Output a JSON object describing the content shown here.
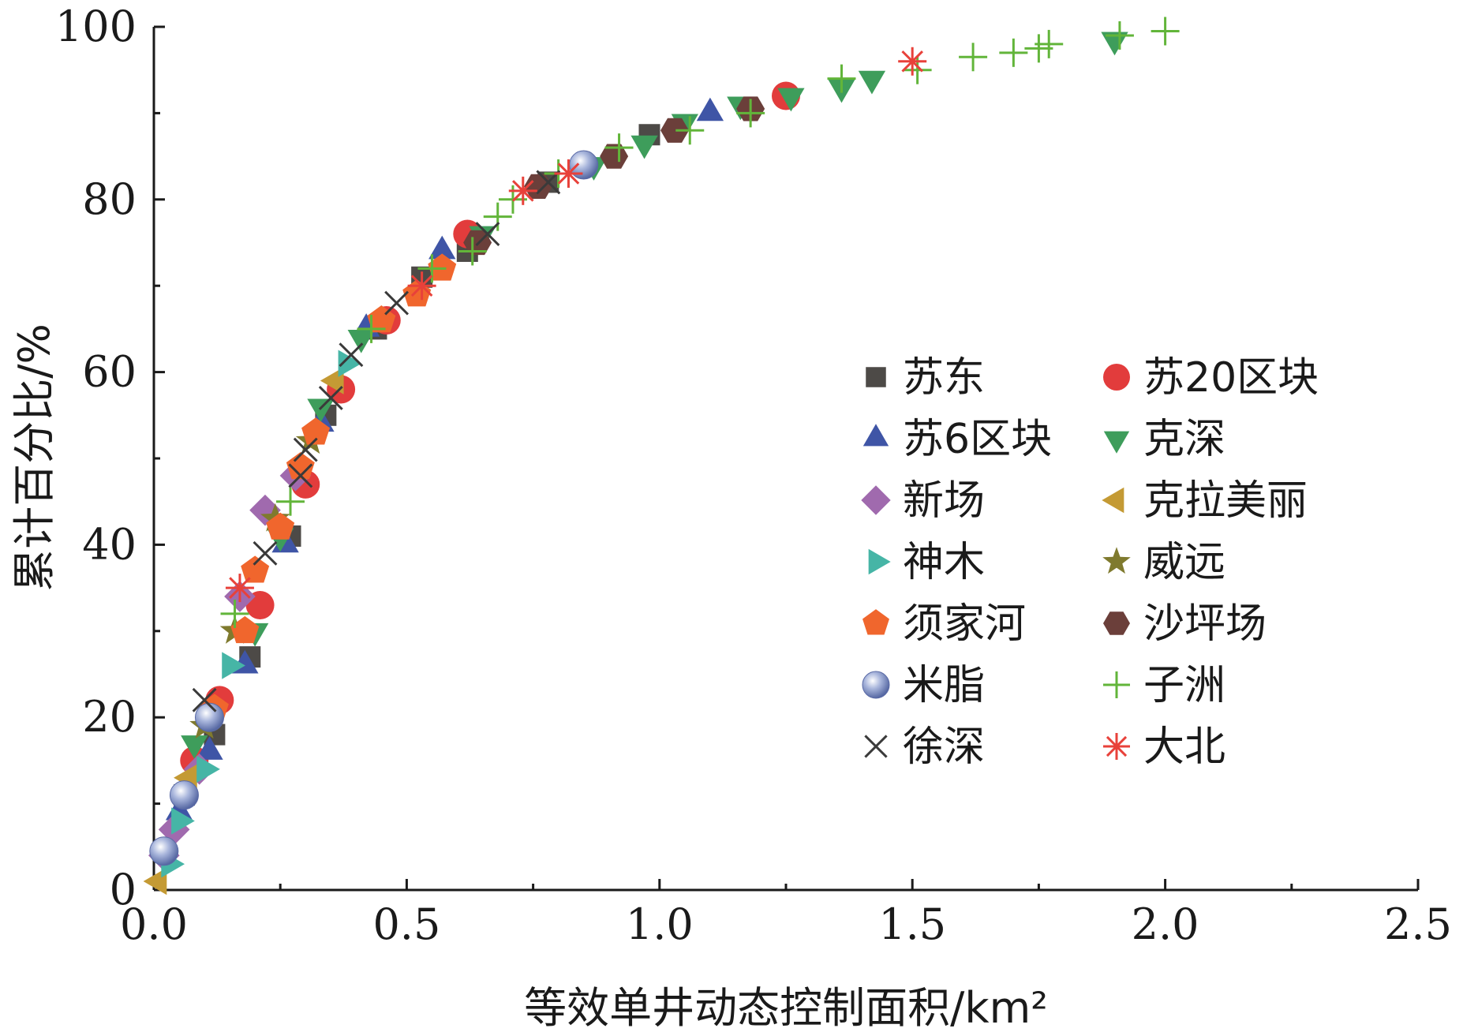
{
  "chart_data": {
    "type": "scatter",
    "title": "",
    "xlabel": "等效单井动态控制面积/km²",
    "ylabel": "累计百分比/%",
    "xlim": [
      0,
      2.5
    ],
    "ylim": [
      0,
      100
    ],
    "xticks": [
      "0.0",
      "0.5",
      "1.0",
      "1.5",
      "2.0",
      "2.5"
    ],
    "yticks": [
      "0",
      "20",
      "40",
      "60",
      "80",
      "100"
    ],
    "grid": false,
    "legend_position": "center-right",
    "series": [
      {
        "name": "苏东",
        "marker": "square",
        "color": "#4d4a47",
        "points": [
          [
            0.06,
            11
          ],
          [
            0.12,
            18
          ],
          [
            0.19,
            27
          ],
          [
            0.27,
            41
          ],
          [
            0.34,
            55
          ],
          [
            0.44,
            65
          ],
          [
            0.53,
            71
          ],
          [
            0.62,
            74
          ],
          [
            0.78,
            82
          ],
          [
            0.98,
            87.5
          ]
        ]
      },
      {
        "name": "苏20区块",
        "marker": "circle",
        "color": "#e23c3c",
        "points": [
          [
            0.08,
            15
          ],
          [
            0.13,
            22
          ],
          [
            0.21,
            33
          ],
          [
            0.3,
            47
          ],
          [
            0.37,
            58
          ],
          [
            0.46,
            66
          ],
          [
            0.62,
            76
          ],
          [
            1.25,
            92
          ]
        ]
      },
      {
        "name": "苏6区块",
        "marker": "triangle-up",
        "color": "#3f55a6",
        "points": [
          [
            0.05,
            9
          ],
          [
            0.11,
            16
          ],
          [
            0.18,
            26
          ],
          [
            0.26,
            40
          ],
          [
            0.33,
            54
          ],
          [
            0.42,
            65
          ],
          [
            0.57,
            74
          ],
          [
            1.1,
            90
          ]
        ]
      },
      {
        "name": "克深",
        "marker": "triangle-down",
        "color": "#3e9d5b",
        "points": [
          [
            0.08,
            17
          ],
          [
            0.2,
            30
          ],
          [
            0.25,
            41
          ],
          [
            0.33,
            56
          ],
          [
            0.41,
            64
          ],
          [
            0.65,
            76
          ],
          [
            0.87,
            84
          ],
          [
            0.97,
            86.5
          ],
          [
            1.05,
            89
          ],
          [
            1.16,
            91
          ],
          [
            1.26,
            92
          ],
          [
            1.36,
            93
          ],
          [
            1.42,
            94
          ],
          [
            1.9,
            98.5
          ]
        ]
      },
      {
        "name": "新场",
        "marker": "diamond",
        "color": "#a06aae",
        "points": [
          [
            0.02,
            4
          ],
          [
            0.04,
            7
          ],
          [
            0.09,
            14
          ],
          [
            0.17,
            34
          ],
          [
            0.22,
            44
          ],
          [
            0.28,
            48
          ]
        ]
      },
      {
        "name": "克拉美丽",
        "marker": "triangle-left",
        "color": "#c49a34",
        "points": [
          [
            0.01,
            1
          ],
          [
            0.07,
            13
          ],
          [
            0.36,
            59
          ]
        ]
      },
      {
        "name": "神木",
        "marker": "triangle-right",
        "color": "#46b5a6",
        "points": [
          [
            0.03,
            3
          ],
          [
            0.05,
            8
          ],
          [
            0.1,
            14
          ],
          [
            0.15,
            26
          ],
          [
            0.38,
            61
          ]
        ]
      },
      {
        "name": "威远",
        "marker": "star",
        "color": "#7f7a2e",
        "points": [
          [
            0.1,
            19
          ],
          [
            0.16,
            30
          ],
          [
            0.24,
            43
          ],
          [
            0.31,
            52
          ]
        ]
      },
      {
        "name": "须家河",
        "marker": "pentagon",
        "color": "#f0662d",
        "points": [
          [
            0.12,
            21
          ],
          [
            0.18,
            30
          ],
          [
            0.2,
            37
          ],
          [
            0.25,
            42
          ],
          [
            0.29,
            49
          ],
          [
            0.32,
            53
          ],
          [
            0.45,
            66
          ],
          [
            0.52,
            69
          ],
          [
            0.57,
            72
          ]
        ]
      },
      {
        "name": "沙坪场",
        "marker": "hexagon",
        "color": "#6b3f3a",
        "points": [
          [
            0.64,
            75
          ],
          [
            0.76,
            81.5
          ],
          [
            0.91,
            85
          ],
          [
            1.03,
            88
          ],
          [
            1.18,
            90.5
          ]
        ]
      },
      {
        "name": "米脂",
        "marker": "sphere",
        "color": "#8496c8",
        "points": [
          [
            0.02,
            4.5
          ],
          [
            0.06,
            11
          ],
          [
            0.11,
            20
          ],
          [
            0.85,
            84
          ]
        ]
      },
      {
        "name": "子洲",
        "marker": "plus",
        "color": "#62b53a",
        "points": [
          [
            0.16,
            32
          ],
          [
            0.27,
            45
          ],
          [
            0.43,
            65
          ],
          [
            0.55,
            72
          ],
          [
            0.63,
            74
          ],
          [
            0.68,
            78
          ],
          [
            0.71,
            80
          ],
          [
            0.8,
            83
          ],
          [
            0.92,
            86
          ],
          [
            1.06,
            88
          ],
          [
            1.18,
            90
          ],
          [
            1.36,
            94
          ],
          [
            1.51,
            95
          ],
          [
            1.62,
            96.5
          ],
          [
            1.7,
            97
          ],
          [
            1.75,
            97.5
          ],
          [
            1.77,
            98
          ],
          [
            1.91,
            99
          ],
          [
            2.0,
            99.5
          ]
        ]
      },
      {
        "name": "徐深",
        "marker": "cross",
        "color": "#3a3a3a",
        "points": [
          [
            0.1,
            22
          ],
          [
            0.22,
            39
          ],
          [
            0.29,
            48
          ],
          [
            0.3,
            51
          ],
          [
            0.35,
            57
          ],
          [
            0.39,
            62
          ],
          [
            0.48,
            68
          ],
          [
            0.66,
            76
          ],
          [
            0.78,
            82
          ]
        ]
      },
      {
        "name": "大北",
        "marker": "asterisk",
        "color": "#e8413a",
        "points": [
          [
            0.17,
            35
          ],
          [
            0.53,
            70
          ],
          [
            0.73,
            81
          ],
          [
            0.82,
            83
          ],
          [
            1.5,
            96
          ]
        ]
      }
    ]
  }
}
